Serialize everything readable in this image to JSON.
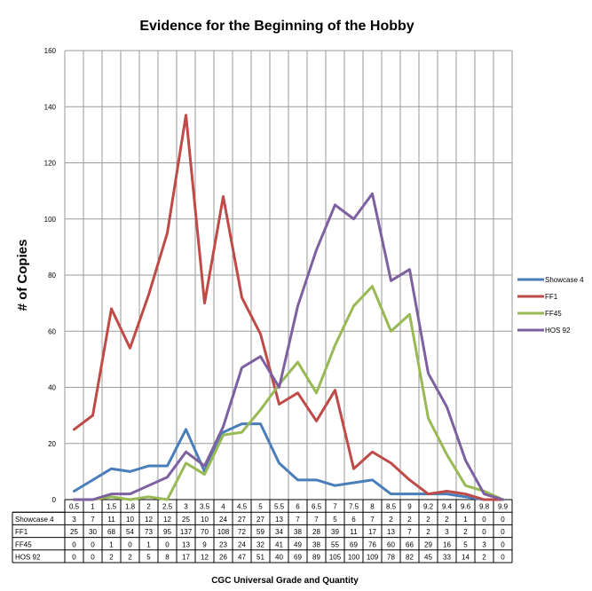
{
  "chart_data": {
    "type": "line",
    "title": "Evidence for the Beginning of the Hobby",
    "xlabel": "CGC Universal  Grade and Quantity",
    "ylabel": "# of Copies",
    "ylim": [
      0,
      160
    ],
    "yticks": [
      0,
      20,
      40,
      60,
      80,
      100,
      120,
      140,
      160
    ],
    "grid": true,
    "legend_position": "right",
    "categories": [
      "0.5",
      "1",
      "1.5",
      "1.8",
      "2",
      "2.5",
      "3",
      "3.5",
      "4",
      "4.5",
      "5",
      "5.5",
      "6",
      "6.5",
      "7",
      "7.5",
      "8",
      "8.5",
      "9",
      "9.2",
      "9.4",
      "9.6",
      "9.8",
      "9.9"
    ],
    "series": [
      {
        "name": "Showcase 4",
        "color": "#4a7ebb",
        "values": [
          3,
          7,
          11,
          10,
          12,
          12,
          25,
          10,
          24,
          27,
          27,
          13,
          7,
          7,
          5,
          6,
          7,
          2,
          2,
          2,
          2,
          1,
          0,
          0
        ]
      },
      {
        "name": "FF1",
        "color": "#be4b48",
        "values": [
          25,
          30,
          68,
          54,
          73,
          95,
          137,
          70,
          108,
          72,
          59,
          34,
          38,
          28,
          39,
          11,
          17,
          13,
          7,
          2,
          3,
          2,
          0,
          0
        ]
      },
      {
        "name": "FF45",
        "color": "#98b954",
        "values": [
          0,
          0,
          1,
          0,
          1,
          0,
          13,
          9,
          23,
          24,
          32,
          41,
          49,
          38,
          55,
          69,
          76,
          60,
          66,
          29,
          16,
          5,
          3,
          0
        ]
      },
      {
        "name": "HOS 92",
        "color": "#7d60a0",
        "values": [
          0,
          0,
          2,
          2,
          5,
          8,
          17,
          12,
          26,
          47,
          51,
          40,
          69,
          89,
          105,
          100,
          109,
          78,
          82,
          45,
          33,
          14,
          2,
          0
        ]
      }
    ]
  }
}
